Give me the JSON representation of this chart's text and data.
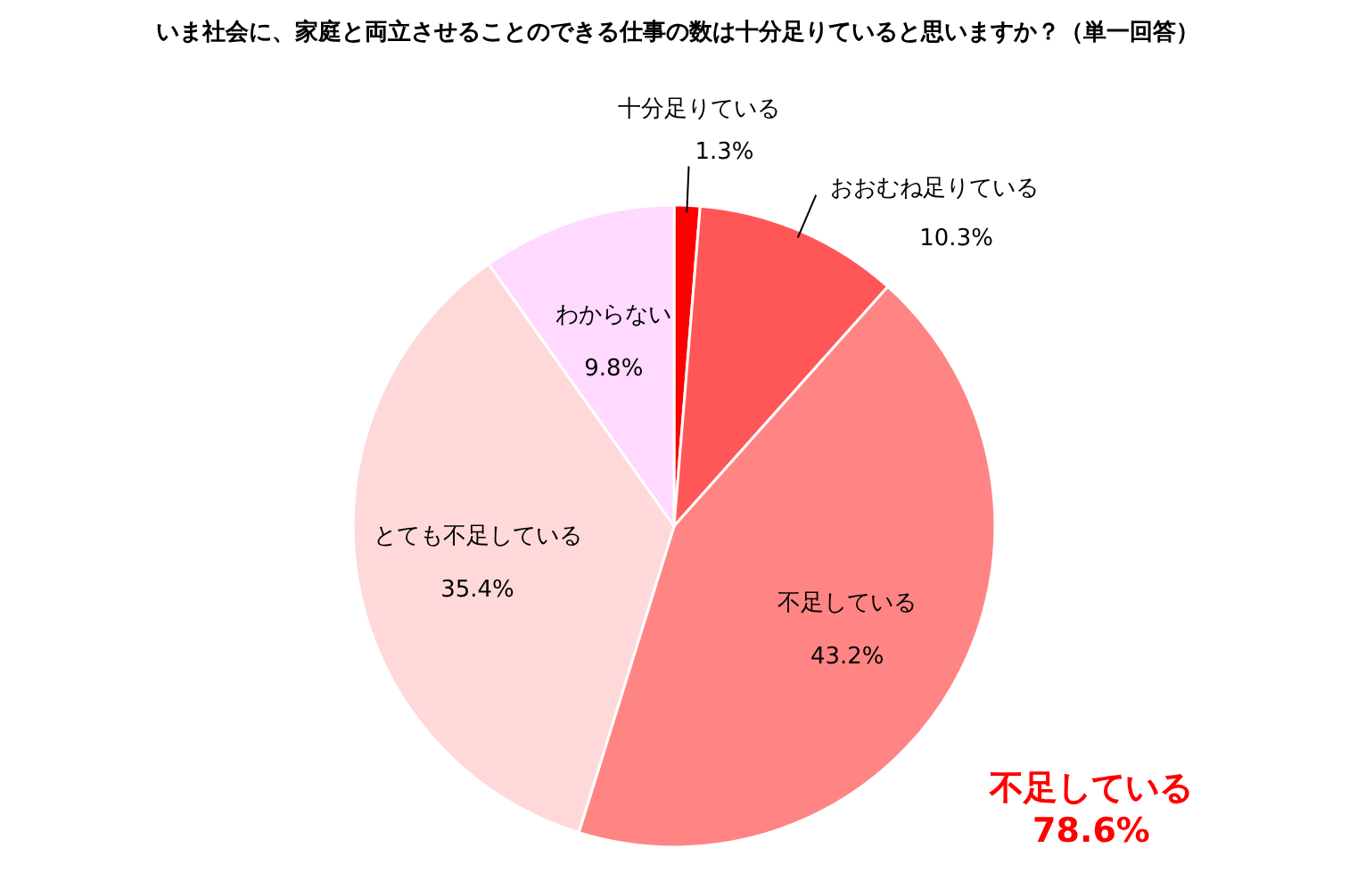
{
  "chart_data": {
    "type": "pie",
    "title": "いま社会に、家庭と両立させることのできる仕事の数は十分足りていると思いますか？（単一回答）",
    "categories": [
      "十分足りている",
      "おおむね足りている",
      "不足している",
      "とても不足している",
      "わからない"
    ],
    "values": [
      1.3,
      10.3,
      43.2,
      35.4,
      9.8
    ],
    "colors": [
      "#ff0000",
      "#ff5757",
      "#ff8585",
      "#ffd9d9",
      "#ffd9ff"
    ],
    "value_labels": [
      "1.3%",
      "10.3%",
      "43.2%",
      "35.4%",
      "9.8%"
    ],
    "annotations": [
      {
        "text": "不足している\n78.6%"
      }
    ]
  }
}
